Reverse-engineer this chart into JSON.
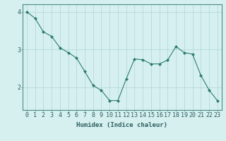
{
  "x": [
    0,
    1,
    2,
    3,
    4,
    5,
    6,
    7,
    8,
    9,
    10,
    11,
    12,
    13,
    14,
    15,
    16,
    17,
    18,
    19,
    20,
    21,
    22,
    23
  ],
  "y": [
    4.0,
    3.83,
    3.47,
    3.35,
    3.05,
    2.92,
    2.78,
    2.42,
    2.05,
    1.92,
    1.65,
    1.65,
    2.22,
    2.75,
    2.73,
    2.62,
    2.62,
    2.72,
    3.08,
    2.92,
    2.88,
    2.32,
    1.93,
    1.65
  ],
  "line_color": "#2e7d6e",
  "marker": "D",
  "marker_size": 2,
  "bg_color": "#d6f0f0",
  "grid_color": "#b0d4d4",
  "axis_color": "#4a8a80",
  "xlabel": "Humidex (Indice chaleur)",
  "ylim": [
    1.4,
    4.2
  ],
  "xlim": [
    -0.5,
    23.5
  ],
  "yticks": [
    2,
    3,
    4
  ],
  "xticks": [
    0,
    1,
    2,
    3,
    4,
    5,
    6,
    7,
    8,
    9,
    10,
    11,
    12,
    13,
    14,
    15,
    16,
    17,
    18,
    19,
    20,
    21,
    22,
    23
  ],
  "font_color": "#2e5d5d",
  "fontsize_xlabel": 6.5,
  "fontsize_ticks": 6
}
